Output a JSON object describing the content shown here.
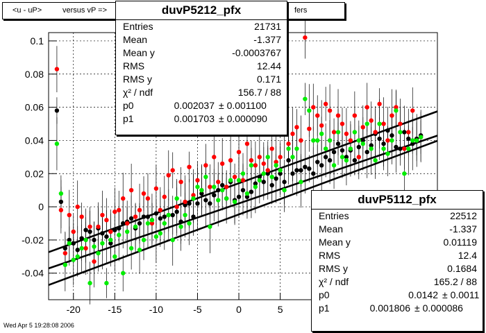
{
  "title_left": "<u - uP>",
  "title_mid": "versus  vP =>",
  "title_right": "fers",
  "timestamp": "Wed Apr  5 19:28:08 2006",
  "stats": [
    {
      "name": "duvP5212_pfx",
      "entries_label": "Entries",
      "entries": "21731",
      "mean_label": "Mean",
      "mean": "-1.377",
      "meany_label": "Mean y",
      "meany": "-0.0003767",
      "rms_label": "RMS",
      "rms": "12.44",
      "rmsy_label": "RMS y",
      "rmsy": "0.171",
      "chi_label": "χ² / ndf",
      "chi": "156.7 / 88",
      "p0_label": "p0",
      "p0": "0.002037",
      "p0_err": "± 0.001100",
      "p1_label": "p1",
      "p1": "0.001703",
      "p1_err": "± 0.000090"
    },
    {
      "name": "duvP5112_pfx",
      "entries_label": "Entries",
      "entries": "22512",
      "mean_label": "Mean",
      "mean": "-1.337",
      "meany_label": "Mean y",
      "meany": "0.01119",
      "rms_label": "RMS",
      "rms": "12.4",
      "rmsy_label": "RMS y",
      "rmsy": "0.1684",
      "chi_label": "χ² / ndf",
      "chi": "165.2 / 88",
      "p0_label": "p0",
      "p0": "0.0142",
      "p0_err": "± 0.0011",
      "p1_label": "p1",
      "p1": "0.001806",
      "p1_err": "± 0.000086"
    }
  ],
  "chart_data": {
    "type": "scatter",
    "xlim": [
      -23,
      24
    ],
    "ylim": [
      -0.056,
      0.105
    ],
    "x_ticks": [
      -20,
      -15,
      -10,
      -5,
      0,
      5
    ],
    "y_ticks": [
      -0.04,
      -0.02,
      0,
      0.02,
      0.04,
      0.06,
      0.08,
      0.1
    ],
    "y_tick_labels": [
      "-0.04",
      "-0.02",
      "0",
      "0.02",
      "0.04",
      "0.06",
      "0.08",
      "0.1"
    ],
    "grid": true,
    "colors": {
      "black": "#000000",
      "red": "#ff0000",
      "green": "#00ee00"
    },
    "fits": [
      {
        "p0": 0.002037,
        "p1": 0.001703
      },
      {
        "p0": 0.0142,
        "p1": 0.001806
      },
      {
        "p0": -0.0046,
        "p1": 0.00185
      }
    ],
    "series": [
      {
        "color": "black",
        "x": [
          -22,
          -21.5,
          -21,
          -20.5,
          -20,
          -19.5,
          -19,
          -18.5,
          -18,
          -17.5,
          -17,
          -16.5,
          -16,
          -15.5,
          -15,
          -14.5,
          -14,
          -13.5,
          -13,
          -12.5,
          -12,
          -11.5,
          -11,
          -10.5,
          -10,
          -9.5,
          -9,
          -8.5,
          -8,
          -7.5,
          -7,
          -6.5,
          -6,
          -5.5,
          -5,
          -4.5,
          -4,
          -3.5,
          -3,
          -2.5,
          -2,
          -1.5,
          -1,
          -0.5,
          0,
          0.5,
          1,
          1.5,
          2,
          2.5,
          3,
          3.5,
          4,
          4.5,
          5,
          5.5,
          6,
          6.5,
          7,
          7.5,
          8,
          8.5,
          9,
          9.5,
          10,
          10.5,
          11,
          11.5,
          12,
          12.5,
          13,
          13.5,
          14,
          14.5,
          15,
          15.5,
          16,
          16.5,
          17,
          17.5,
          18,
          18.5,
          19,
          19.5,
          20,
          20.5,
          21,
          21.5,
          22
        ],
        "y": [
          0.058,
          0.003,
          -0.025,
          -0.02,
          -0.022,
          -0.026,
          -0.019,
          -0.014,
          -0.015,
          -0.02,
          -0.013,
          -0.016,
          -0.018,
          -0.022,
          -0.014,
          -0.013,
          -0.01,
          -0.009,
          -0.007,
          -0.013,
          -0.01,
          -0.006,
          -0.006,
          -0.008,
          -0.004,
          -0.007,
          -0.006,
          -0.005,
          -0.005,
          -0.003,
          -0.009,
          0.001,
          0.002,
          -0.006,
          0.002,
          0.008,
          0.004,
          0.002,
          0.007,
          0.01,
          0.013,
          0.005,
          0.015,
          0.004,
          0.006,
          0.01,
          0.006,
          0.009,
          0.014,
          0.018,
          0.015,
          0.02,
          0.013,
          0.017,
          0.02,
          0.015,
          0.028,
          0.02,
          0.022,
          0.022,
          0.024,
          0.023,
          0.02,
          0.027,
          0.025,
          0.03,
          0.028,
          0.033,
          0.038,
          0.034,
          0.03,
          0.034,
          0.028,
          0.036,
          0.04,
          0.033,
          0.037,
          0.044,
          0.041,
          0.038,
          0.046,
          0.043,
          0.036,
          0.035,
          0.045,
          0.041,
          0.038,
          0.041,
          0.043
        ]
      },
      {
        "color": "red",
        "x": [
          -22,
          -21.5,
          -21,
          -20.5,
          -20,
          -19.5,
          -19,
          -18.5,
          -18,
          -17.5,
          -17,
          -16.5,
          -16,
          -15.5,
          -15,
          -14.5,
          -14,
          -13.5,
          -13,
          -12.5,
          -12,
          -11.5,
          -11,
          -10.5,
          -10,
          -9.5,
          -9,
          -8.5,
          -8,
          -7.5,
          -7,
          -6.5,
          -6,
          -5.5,
          -5,
          -4.5,
          -4,
          -3.5,
          -3,
          -2.5,
          -2,
          -1.5,
          -1,
          -0.5,
          0,
          0.5,
          1,
          1.5,
          2,
          2.5,
          3,
          3.5,
          4,
          4.5,
          5,
          5.5,
          6,
          6.5,
          7,
          7.5,
          8,
          8.5,
          9,
          9.5,
          10,
          10.5,
          11,
          11.5,
          12,
          12.5,
          13,
          13.5,
          14,
          14.5,
          15,
          15.5,
          16,
          16.5,
          17,
          17.5,
          18,
          18.5,
          19,
          19.5,
          20,
          20.5,
          21,
          21.5,
          22
        ],
        "y": [
          0.083,
          -0.002,
          -0.028,
          -0.005,
          -0.015,
          0,
          -0.006,
          -0.025,
          -0.012,
          -0.033,
          -0.012,
          -0.005,
          -0.008,
          -0.015,
          -0.003,
          -0.002,
          0.005,
          -0.01,
          0.01,
          -0.006,
          -0.002,
          0.008,
          0.005,
          -0.01,
          0.011,
          -0.002,
          0.006,
          0.019,
          0.022,
          0,
          0.015,
          0.003,
          0.024,
          0.007,
          0.016,
          0.01,
          0.025,
          0.012,
          0.03,
          0.015,
          0.026,
          0.012,
          0.028,
          0.018,
          0.033,
          0.016,
          0.038,
          0.028,
          0.025,
          0.03,
          0.026,
          0.022,
          0.035,
          0.027,
          0.03,
          0.045,
          0.038,
          0.044,
          0.048,
          0.04,
          0.102,
          0.047,
          0.06,
          0.055,
          0.049,
          0.062,
          0.058,
          0.045,
          0.055,
          0.05,
          0.044,
          0.04,
          0.055,
          0.03,
          0.048,
          0.06,
          0.052,
          0.045,
          0.062,
          0.05,
          0.04,
          0.055,
          0.06,
          0.05,
          0.035,
          0.045,
          0.058,
          0.04,
          0.042
        ]
      },
      {
        "color": "green",
        "x": [
          -22,
          -21.5,
          -21,
          -20.5,
          -20,
          -19.5,
          -19,
          -18.5,
          -18,
          -17.5,
          -17,
          -16.5,
          -16,
          -15.5,
          -15,
          -14.5,
          -14,
          -13.5,
          -13,
          -12.5,
          -12,
          -11.5,
          -11,
          -10.5,
          -10,
          -9.5,
          -9,
          -8.5,
          -8,
          -7.5,
          -7,
          -6.5,
          -6,
          -5.5,
          -5,
          -4.5,
          -4,
          -3.5,
          -3,
          -2.5,
          -2,
          -1.5,
          -1,
          -0.5,
          0,
          0.5,
          1,
          1.5,
          2,
          2.5,
          3,
          3.5,
          4,
          4.5,
          5,
          5.5,
          6,
          6.5,
          7,
          7.5,
          8,
          8.5,
          9,
          9.5,
          10,
          10.5,
          11,
          11.5,
          12,
          12.5,
          13,
          13.5,
          14,
          14.5,
          15,
          15.5,
          16,
          16.5,
          17,
          17.5,
          18,
          18.5,
          19,
          19.5,
          20,
          20.5,
          21,
          21.5,
          22
        ],
        "y": [
          0.038,
          0.008,
          -0.035,
          -0.022,
          -0.032,
          -0.03,
          -0.025,
          -0.02,
          -0.046,
          -0.024,
          -0.028,
          -0.022,
          -0.046,
          -0.02,
          -0.03,
          -0.017,
          -0.04,
          -0.015,
          -0.025,
          -0.012,
          -0.026,
          -0.02,
          -0.01,
          -0.008,
          -0.018,
          -0.016,
          -0.01,
          -0.005,
          -0.02,
          0.005,
          -0.012,
          -0.005,
          -0.01,
          0.005,
          0.012,
          0.01,
          0.018,
          -0.012,
          0.012,
          0.004,
          0.01,
          0.005,
          0.016,
          0.003,
          0.016,
          0.02,
          0.008,
          0.025,
          0.012,
          0.016,
          0.02,
          0.03,
          0.018,
          0.025,
          0.022,
          0.01,
          0.035,
          0.03,
          0.035,
          0.015,
          0.065,
          0.058,
          0.04,
          0.04,
          0.044,
          0.035,
          0.04,
          0.025,
          0.045,
          0.03,
          0.028,
          0.035,
          0.045,
          0.04,
          0.038,
          0.05,
          0.035,
          0.028,
          0.05,
          0.035,
          0.032,
          0.04,
          0.058,
          0.045,
          0.02,
          0.035,
          0.04,
          0.04,
          0.042
        ]
      }
    ]
  }
}
